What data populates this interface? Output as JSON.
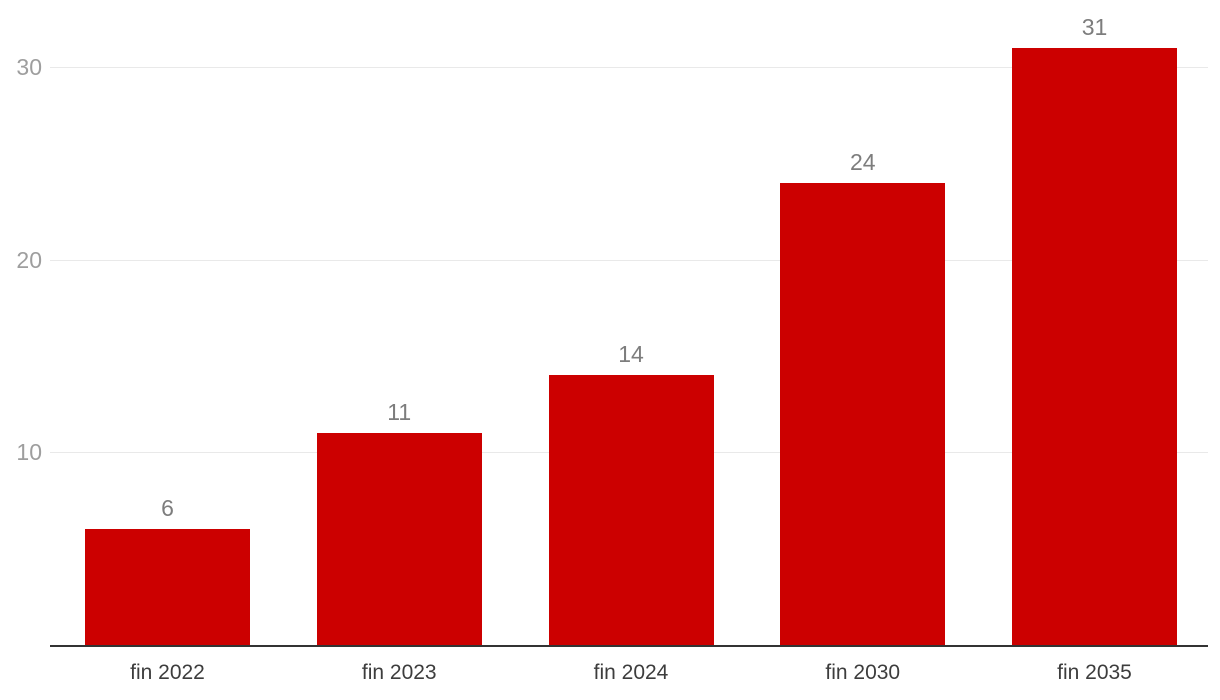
{
  "chart_data": {
    "type": "bar",
    "categories": [
      "fin 2022",
      "fin 2023",
      "fin 2024",
      "fin 2030",
      "fin 2035"
    ],
    "values": [
      6,
      11,
      14,
      24,
      31
    ],
    "value_labels": [
      "6",
      "11",
      "14",
      "24",
      "31"
    ],
    "title": "",
    "xlabel": "",
    "ylabel": "",
    "ylim": [
      0,
      31
    ],
    "yticks": [
      10,
      20,
      30
    ],
    "ytick_labels": [
      "10",
      "20",
      "30"
    ],
    "grid": true,
    "legend": false,
    "colors": {
      "bar": "#cc0000",
      "gridline": "#e9e9e9",
      "axis_line": "#333333",
      "ytick_label": "#9e9e9e",
      "value_label": "#7d7d7d",
      "category_label": "#3d3d3d",
      "background": "#ffffff"
    }
  }
}
